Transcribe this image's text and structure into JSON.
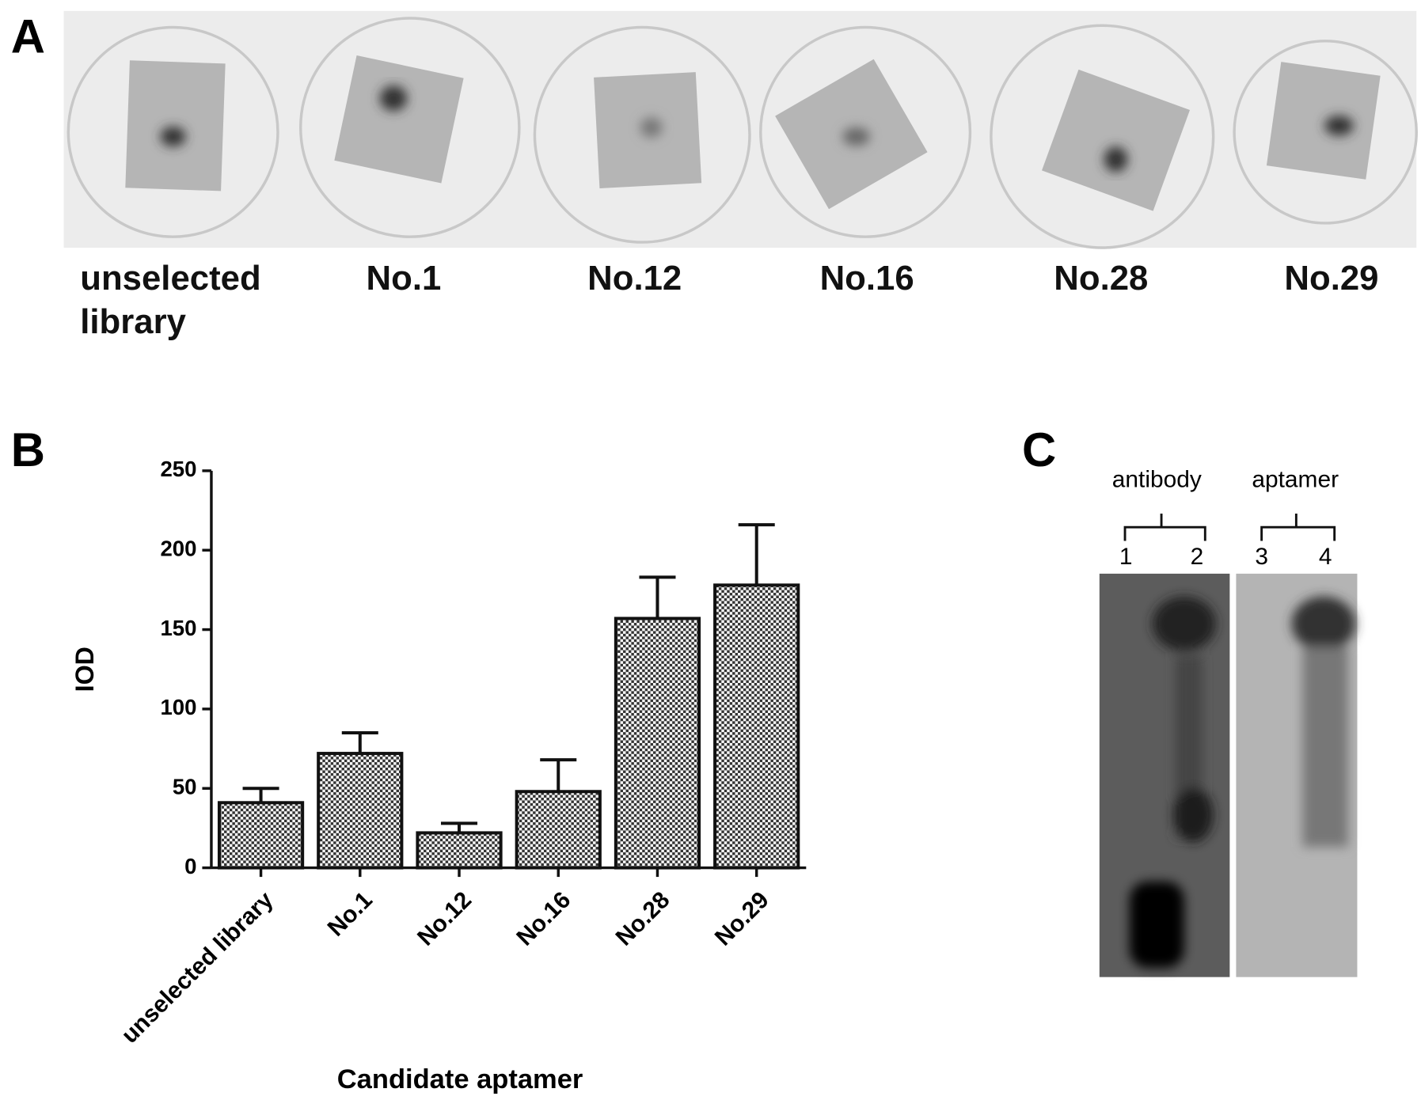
{
  "panel_labels": [
    "A",
    "B",
    "C"
  ],
  "panel_a": {
    "labels": [
      "unselected library",
      "No.1",
      "No.12",
      "No.16",
      "No.28",
      "No.29"
    ]
  },
  "panel_c": {
    "groups": [
      "antibody",
      "aptamer"
    ],
    "lanes": [
      "1",
      "2",
      "3",
      "4"
    ]
  },
  "chart_data": {
    "type": "bar",
    "y_label": "IOD",
    "x_label": "Candidate aptamer",
    "categories": [
      "unselected library",
      "No.1",
      "No.12",
      "No.16",
      "No.28",
      "No.29"
    ],
    "values": [
      41,
      72,
      22,
      48,
      157,
      178
    ],
    "errors": [
      9,
      13,
      6,
      20,
      26,
      38
    ],
    "ylim": [
      0,
      250
    ],
    "yticks": [
      0,
      50,
      100,
      150,
      200,
      250
    ],
    "color": "#111111"
  }
}
